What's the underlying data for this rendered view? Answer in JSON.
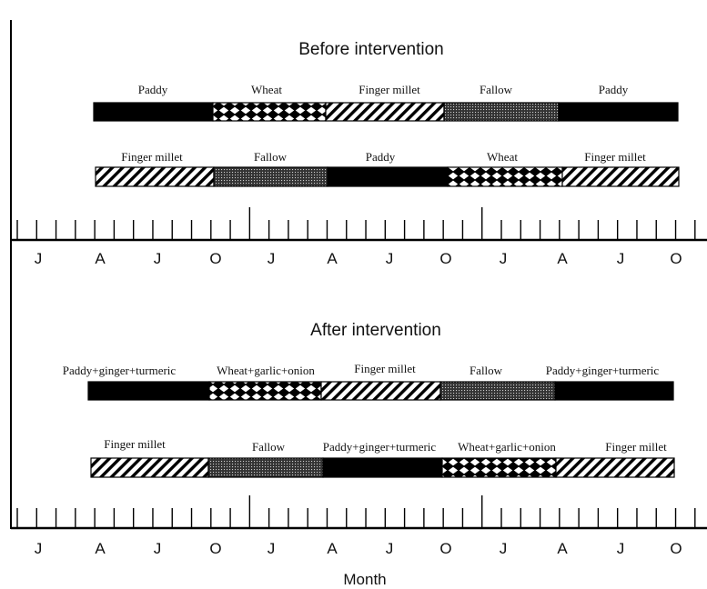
{
  "panels": [
    {
      "title": "Before intervention",
      "rows": [
        {
          "segments": [
            {
              "label": "Paddy",
              "pattern": "solid"
            },
            {
              "label": "Wheat",
              "pattern": "diamond"
            },
            {
              "label": "Finger millet",
              "pattern": "hatch"
            },
            {
              "label": "Fallow",
              "pattern": "dots"
            },
            {
              "label": "Paddy",
              "pattern": "solid"
            }
          ]
        },
        {
          "segments": [
            {
              "label": "Finger millet",
              "pattern": "hatch"
            },
            {
              "label": "Fallow",
              "pattern": "dots"
            },
            {
              "label": "Paddy",
              "pattern": "solid"
            },
            {
              "label": "Wheat",
              "pattern": "diamond"
            },
            {
              "label": "Finger millet",
              "pattern": "hatch"
            }
          ]
        }
      ]
    },
    {
      "title": "After intervention",
      "rows": [
        {
          "segments": [
            {
              "label": "Paddy+ginger+turmeric",
              "pattern": "solid"
            },
            {
              "label": "Wheat+garlic+onion",
              "pattern": "diamond"
            },
            {
              "label": "Finger millet",
              "pattern": "hatch"
            },
            {
              "label": "Fallow",
              "pattern": "dots"
            },
            {
              "label": "Paddy+ginger+turmeric",
              "pattern": "solid"
            }
          ]
        },
        {
          "segments": [
            {
              "label": "Finger millet",
              "pattern": "hatch"
            },
            {
              "label": "Fallow",
              "pattern": "dots"
            },
            {
              "label": "Paddy+ginger+turmeric",
              "pattern": "solid"
            },
            {
              "label": "Wheat+garlic+onion",
              "pattern": "diamond"
            },
            {
              "label": "Finger millet",
              "pattern": "hatch"
            }
          ]
        }
      ]
    }
  ],
  "axis": {
    "months": [
      "J",
      "A",
      "J",
      "O",
      "J",
      "A",
      "J",
      "O",
      "J",
      "A",
      "J",
      "O"
    ],
    "title": "Month"
  },
  "colors": {
    "ink": "#111111",
    "solid": "#000000",
    "background": "#ffffff"
  }
}
